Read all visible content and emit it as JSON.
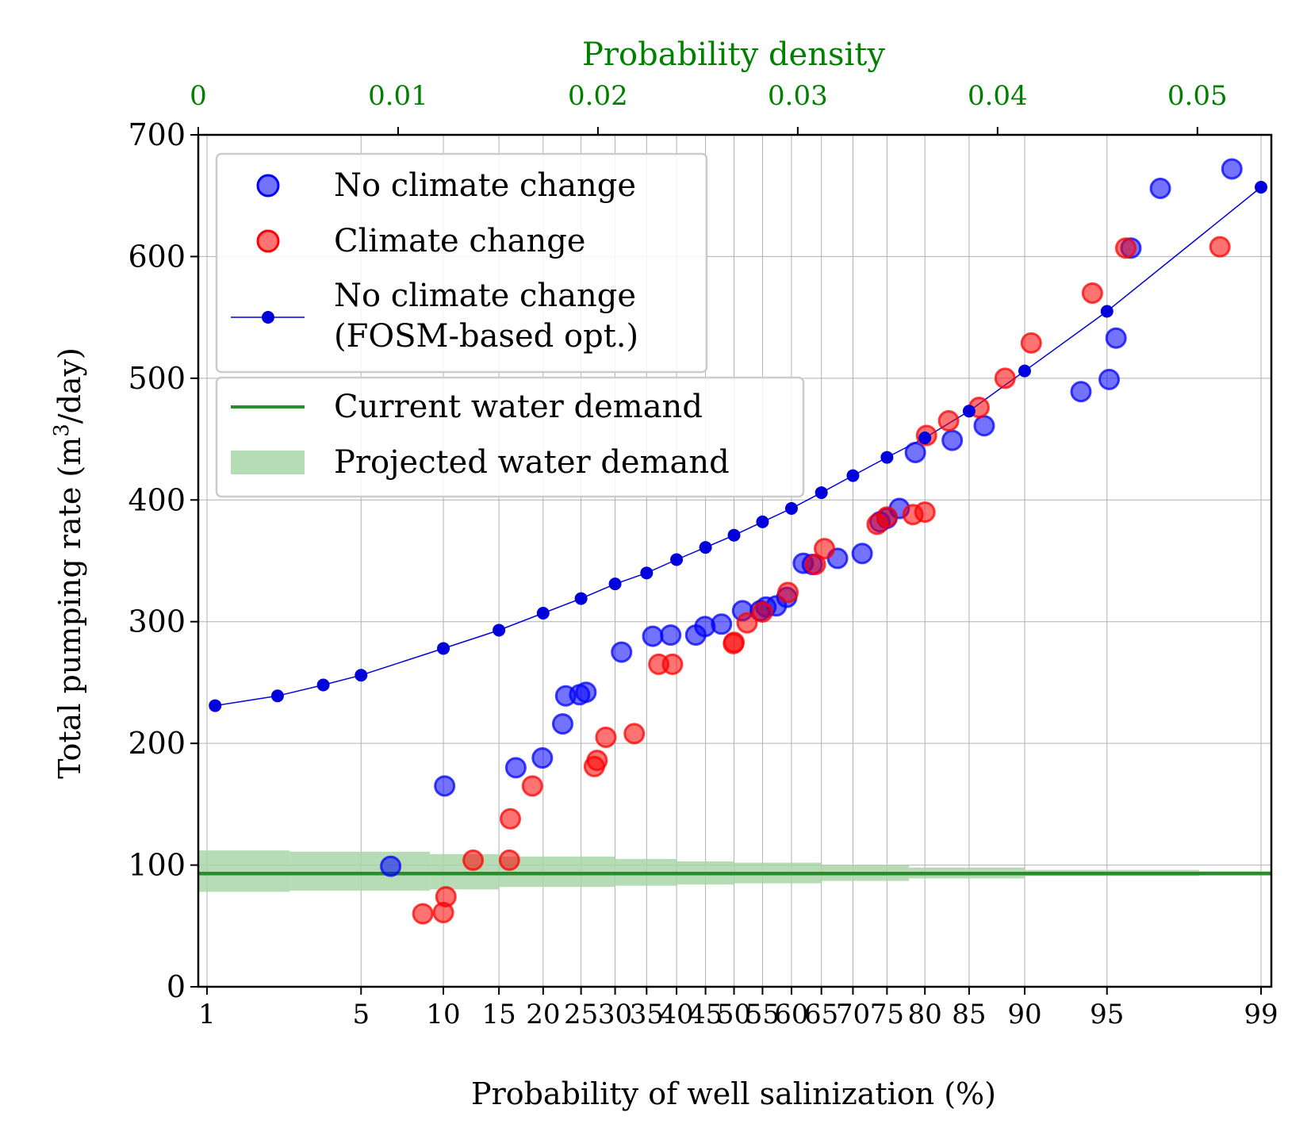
{
  "chart_data": {
    "type": "scatter",
    "xlabel": "Probability of well salinization (%)",
    "ylabel": "Total pumping rate (m³/day)",
    "ylabel_parts": {
      "pre": "Total pumping rate (m",
      "sup": "3",
      "post": "/day)"
    },
    "top_xlabel": "Probability density",
    "ylim": [
      0,
      700
    ],
    "yticks": [
      0,
      100,
      200,
      300,
      400,
      500,
      600,
      700
    ],
    "x_scale": "probit",
    "xticks": [
      1,
      5,
      10,
      15,
      20,
      25,
      30,
      35,
      40,
      45,
      50,
      55,
      60,
      65,
      70,
      75,
      80,
      85,
      90,
      95,
      99
    ],
    "xticks_label": [
      "1",
      "5",
      "10",
      "15",
      "20",
      "25",
      "30",
      "35",
      "40",
      "45",
      "50",
      "55",
      "60",
      "65",
      "70",
      "75",
      "80",
      "85",
      "90",
      "95",
      "99"
    ],
    "top_xlim": [
      0,
      0.0537
    ],
    "top_xticks": [
      0,
      0.01,
      0.02,
      0.03,
      0.04,
      0.05
    ],
    "top_xticks_label": [
      "0",
      "0.01",
      "0.02",
      "0.03",
      "0.04",
      "0.05"
    ],
    "grid": true,
    "legend": [
      {
        "label": "No climate change",
        "type": "scatter",
        "color": "#0000ff"
      },
      {
        "label": "Climate change",
        "type": "scatter",
        "color": "#ff0000"
      },
      {
        "label": [
          "No climate change",
          "(FOSM-based opt.)"
        ],
        "type": "line-marker",
        "color": "#0000dd"
      },
      {
        "label": "Current water demand",
        "type": "line",
        "color": "#2b8c2b"
      },
      {
        "label": "Projected water demand",
        "type": "band",
        "color": "#a9d6a9"
      }
    ],
    "legend_position": "upper-left",
    "series": [
      {
        "name": "No climate change",
        "kind": "scatter",
        "color": "#0000ff",
        "points": [
          [
            6.5,
            99
          ],
          [
            10.1,
            165
          ],
          [
            16.8,
            180
          ],
          [
            19.9,
            188
          ],
          [
            22.5,
            216
          ],
          [
            22.9,
            239
          ],
          [
            24.8,
            240
          ],
          [
            25.7,
            242
          ],
          [
            31,
            275
          ],
          [
            36,
            288
          ],
          [
            39,
            289
          ],
          [
            43.3,
            289
          ],
          [
            44.9,
            296
          ],
          [
            47.8,
            298
          ],
          [
            51.5,
            309
          ],
          [
            54.6,
            309
          ],
          [
            55.6,
            312
          ],
          [
            57.4,
            313
          ],
          [
            59.2,
            320
          ],
          [
            62,
            348
          ],
          [
            63.5,
            347
          ],
          [
            67.6,
            352
          ],
          [
            71.4,
            356
          ],
          [
            74,
            382
          ],
          [
            75,
            385
          ],
          [
            76.7,
            393
          ],
          [
            78.8,
            439
          ],
          [
            83.2,
            449
          ],
          [
            86.5,
            461
          ],
          [
            93.7,
            489
          ],
          [
            95.1,
            499
          ],
          [
            95.4,
            533
          ],
          [
            96,
            607
          ],
          [
            97,
            656
          ],
          [
            98.6,
            672
          ]
        ]
      },
      {
        "name": "Climate change",
        "kind": "scatter",
        "color": "#ff0000",
        "points": [
          [
            8.5,
            60
          ],
          [
            10,
            61
          ],
          [
            10.2,
            74
          ],
          [
            12.5,
            104
          ],
          [
            16.1,
            104
          ],
          [
            16.2,
            138
          ],
          [
            18.7,
            165
          ],
          [
            26.9,
            181
          ],
          [
            27.3,
            186
          ],
          [
            28.6,
            205
          ],
          [
            33,
            208
          ],
          [
            37,
            265
          ],
          [
            39.3,
            265
          ],
          [
            49.9,
            282
          ],
          [
            50,
            283
          ],
          [
            52.3,
            299
          ],
          [
            55,
            308
          ],
          [
            59.4,
            324
          ],
          [
            64,
            347
          ],
          [
            65.5,
            360
          ],
          [
            73.6,
            380
          ],
          [
            75,
            386
          ],
          [
            78.5,
            388
          ],
          [
            80,
            390
          ],
          [
            80.2,
            453
          ],
          [
            82.8,
            465
          ],
          [
            86,
            476
          ],
          [
            88.4,
            500
          ],
          [
            90.5,
            529
          ],
          [
            94.3,
            570
          ],
          [
            95.8,
            607
          ],
          [
            98.4,
            608
          ]
        ]
      },
      {
        "name": "No climate change (FOSM-based opt.)",
        "kind": "line-marker",
        "color": "#0000dd",
        "points": [
          [
            1.1,
            231
          ],
          [
            2.2,
            239
          ],
          [
            3.5,
            248
          ],
          [
            5,
            256
          ],
          [
            10,
            278
          ],
          [
            15,
            293
          ],
          [
            20,
            307
          ],
          [
            25,
            319
          ],
          [
            30,
            331
          ],
          [
            35,
            340
          ],
          [
            40,
            351
          ],
          [
            45,
            361
          ],
          [
            50,
            371
          ],
          [
            55,
            382
          ],
          [
            60,
            393
          ],
          [
            65,
            406
          ],
          [
            70,
            420
          ],
          [
            75,
            435
          ],
          [
            80,
            451
          ],
          [
            85,
            473
          ],
          [
            90,
            506
          ],
          [
            95,
            555
          ],
          [
            99,
            657
          ]
        ]
      }
    ],
    "current_demand": 93,
    "projected_demand_band": [
      {
        "x0": 0.3,
        "x1": 0.5,
        "lo": 77,
        "hi": 113
      },
      {
        "x0": 0.5,
        "x1": 2.5,
        "lo": 78,
        "hi": 112
      },
      {
        "x0": 2.5,
        "x1": 9,
        "lo": 79,
        "hi": 111
      },
      {
        "x0": 9,
        "x1": 15,
        "lo": 80,
        "hi": 109
      },
      {
        "x0": 15,
        "x1": 30,
        "lo": 82,
        "hi": 107
      },
      {
        "x0": 30,
        "x1": 40,
        "lo": 83,
        "hi": 105
      },
      {
        "x0": 40,
        "x1": 50,
        "lo": 84,
        "hi": 103
      },
      {
        "x0": 50,
        "x1": 65,
        "lo": 85,
        "hi": 102
      },
      {
        "x0": 65,
        "x1": 78,
        "lo": 87,
        "hi": 100
      },
      {
        "x0": 78,
        "x1": 90,
        "lo": 89,
        "hi": 98
      },
      {
        "x0": 90,
        "x1": 98,
        "lo": 91,
        "hi": 96
      },
      {
        "x0": 98,
        "x1": 99.9,
        "lo": 92,
        "hi": 95
      }
    ]
  }
}
